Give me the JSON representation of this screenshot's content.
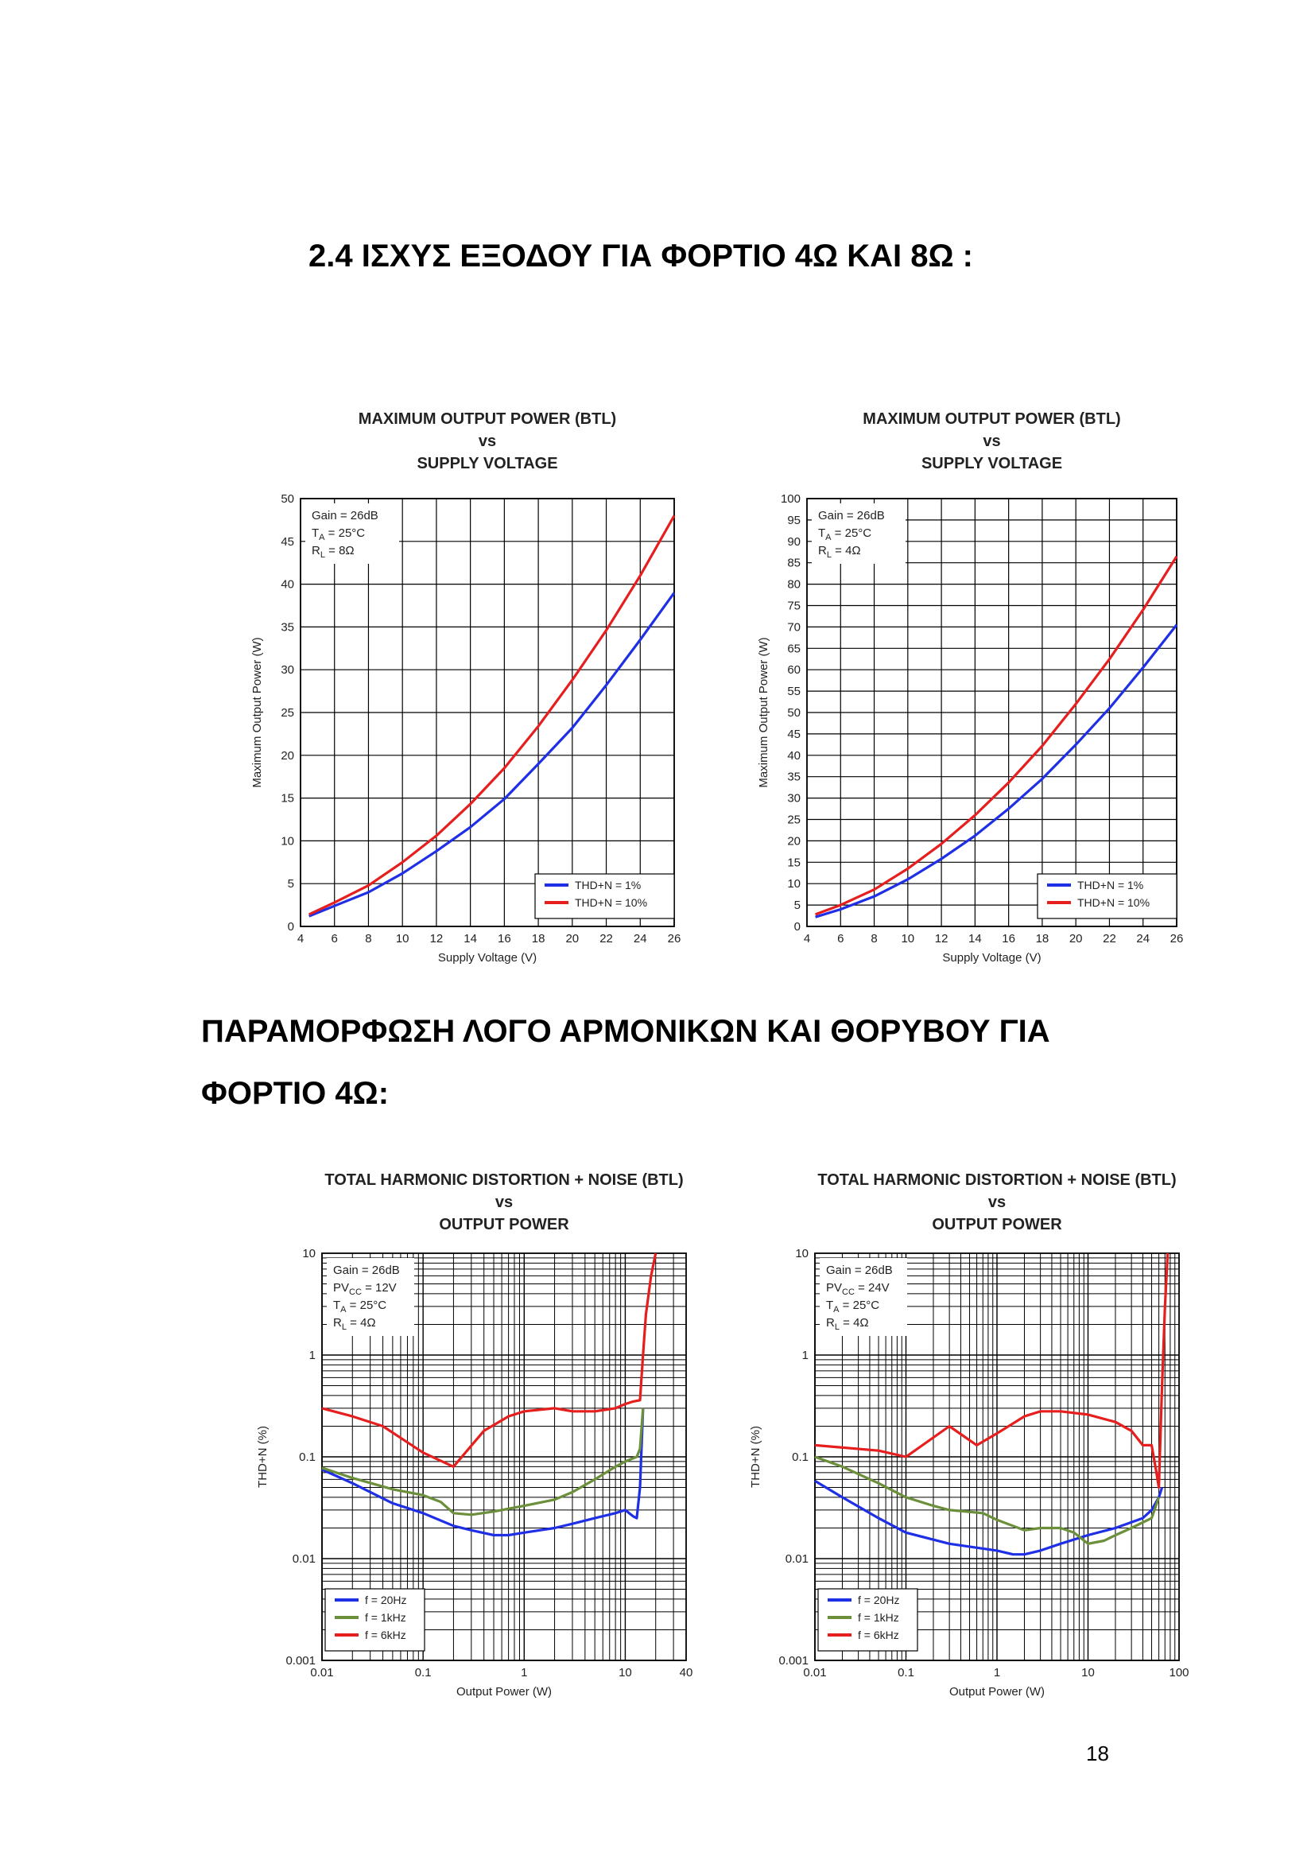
{
  "section_heading": "2.4   ΙΣΧΥΣ ΕΞΟΔΟΥ ΓΙΑ ΦΟΡΤΙΟ 4Ω ΚΑΙ 8Ω :",
  "subheading": "ΠΑΡΑΜΟΡΦΩΣΗ ΛΟΓΟ ΑΡΜΟΝΙΚΩΝ ΚΑΙ ΘΟΡΥΒΟΥ ΓΙΑ ΦΟΡΤΙΟ 4Ω:",
  "page_number": "18",
  "chart_data": [
    {
      "type": "line",
      "title_lines": [
        "MAXIMUM OUTPUT POWER (BTL)",
        "vs",
        "SUPPLY VOLTAGE"
      ],
      "xlabel": "Supply Voltage (V)",
      "ylabel": "Maximum Output Power (W)",
      "xlim": [
        4,
        26
      ],
      "ylim": [
        0,
        50
      ],
      "xticks": [
        4,
        6,
        8,
        10,
        12,
        14,
        16,
        18,
        20,
        22,
        24,
        26
      ],
      "yticks": [
        0,
        5,
        10,
        15,
        20,
        25,
        30,
        35,
        40,
        45,
        50
      ],
      "grid": true,
      "annotation": [
        "Gain = 26dB",
        "T_A = 25°C",
        "R_L = 8Ω"
      ],
      "legend_position": "bottom-right",
      "series": [
        {
          "name": "THD+N = 1%",
          "color": "#1f2fe6",
          "x": [
            4.5,
            6,
            8,
            10,
            12,
            14,
            16,
            18,
            20,
            22,
            24,
            26
          ],
          "y": [
            1.2,
            2.4,
            4,
            6.2,
            8.8,
            11.6,
            14.9,
            19.0,
            23.2,
            28.2,
            33.5,
            39
          ]
        },
        {
          "name": "THD+N = 10%",
          "color": "#e61e1e",
          "x": [
            4.5,
            6,
            8,
            10,
            12,
            14,
            16,
            18,
            20,
            22,
            24,
            26
          ],
          "y": [
            1.4,
            2.8,
            4.8,
            7.5,
            10.6,
            14.3,
            18.5,
            23.4,
            28.8,
            34.6,
            41,
            48
          ]
        }
      ]
    },
    {
      "type": "line",
      "title_lines": [
        "MAXIMUM OUTPUT POWER (BTL)",
        "vs",
        "SUPPLY VOLTAGE"
      ],
      "xlabel": "Supply Voltage (V)",
      "ylabel": "Maximum Output Power (W)",
      "xlim": [
        4,
        26
      ],
      "ylim": [
        0,
        100
      ],
      "xticks": [
        4,
        6,
        8,
        10,
        12,
        14,
        16,
        18,
        20,
        22,
        24,
        26
      ],
      "yticks": [
        0,
        5,
        10,
        15,
        20,
        25,
        30,
        35,
        40,
        45,
        50,
        55,
        60,
        65,
        70,
        75,
        80,
        85,
        90,
        95,
        100
      ],
      "grid": true,
      "annotation": [
        "Gain = 26dB",
        "T_A = 25°C",
        "R_L = 4Ω"
      ],
      "legend_position": "bottom-right",
      "series": [
        {
          "name": "THD+N = 1%",
          "color": "#1f2fe6",
          "x": [
            4.5,
            6,
            8,
            10,
            12,
            14,
            16,
            18,
            20,
            22,
            24,
            26
          ],
          "y": [
            2.2,
            4.0,
            7.0,
            11.0,
            15.8,
            21.2,
            27.5,
            34.5,
            42.5,
            51,
            60.5,
            70.5
          ]
        },
        {
          "name": "THD+N = 10%",
          "color": "#e61e1e",
          "x": [
            4.5,
            6,
            8,
            10,
            12,
            14,
            16,
            18,
            20,
            22,
            24,
            26
          ],
          "y": [
            2.8,
            5.0,
            8.6,
            13.5,
            19.3,
            26,
            33.6,
            42.2,
            52,
            62.5,
            74,
            86.5
          ]
        }
      ]
    },
    {
      "type": "line",
      "title_lines": [
        "TOTAL HARMONIC DISTORTION + NOISE (BTL)",
        "vs",
        "OUTPUT POWER"
      ],
      "xlabel": "Output Power (W)",
      "ylabel": "THD+N (%)",
      "xscale": "log",
      "yscale": "log",
      "xlim": [
        0.01,
        40
      ],
      "ylim": [
        0.001,
        10
      ],
      "xticks": [
        0.01,
        0.1,
        1,
        10,
        40
      ],
      "xticklabels": [
        "0.01",
        "0.1",
        "1",
        "10",
        "40"
      ],
      "yticks": [
        0.001,
        0.01,
        0.1,
        1,
        10
      ],
      "yticklabels": [
        "0.001",
        "0.01",
        "0.1",
        "1",
        "10"
      ],
      "grid": true,
      "annotation": [
        "Gain = 26dB",
        "PV_CC = 12V",
        "T_A = 25°C",
        "R_L = 4Ω"
      ],
      "legend_position": "bottom-left",
      "series": [
        {
          "name": "f = 20Hz",
          "color": "#1f2fe6",
          "x": [
            0.01,
            0.02,
            0.05,
            0.1,
            0.2,
            0.3,
            0.5,
            0.7,
            1,
            2,
            3,
            5,
            8,
            10,
            12,
            13,
            14,
            15
          ],
          "y": [
            0.075,
            0.055,
            0.035,
            0.028,
            0.021,
            0.019,
            0.017,
            0.017,
            0.018,
            0.02,
            0.022,
            0.025,
            0.028,
            0.03,
            0.026,
            0.025,
            0.05,
            0.3
          ]
        },
        {
          "name": "f = 1kHz",
          "color": "#6b8f3a",
          "x": [
            0.01,
            0.02,
            0.05,
            0.1,
            0.15,
            0.2,
            0.3,
            0.5,
            1,
            2,
            3,
            5,
            8,
            10,
            13,
            14,
            15
          ],
          "y": [
            0.078,
            0.062,
            0.048,
            0.042,
            0.036,
            0.028,
            0.027,
            0.029,
            0.033,
            0.038,
            0.045,
            0.06,
            0.08,
            0.09,
            0.1,
            0.12,
            0.3
          ]
        },
        {
          "name": "f = 6kHz",
          "color": "#e61e1e",
          "x": [
            0.01,
            0.02,
            0.04,
            0.1,
            0.2,
            0.4,
            0.7,
            1,
            2,
            3,
            5,
            8,
            10,
            12,
            14,
            15,
            16,
            18,
            20
          ],
          "y": [
            0.3,
            0.25,
            0.2,
            0.11,
            0.08,
            0.18,
            0.25,
            0.28,
            0.3,
            0.28,
            0.28,
            0.3,
            0.33,
            0.35,
            0.36,
            1,
            2.5,
            6,
            10
          ]
        }
      ]
    },
    {
      "type": "line",
      "title_lines": [
        "TOTAL HARMONIC DISTORTION + NOISE (BTL)",
        "vs",
        "OUTPUT POWER"
      ],
      "xlabel": "Output Power (W)",
      "ylabel": "THD+N (%)",
      "xscale": "log",
      "yscale": "log",
      "xlim": [
        0.01,
        100
      ],
      "ylim": [
        0.001,
        10
      ],
      "xticks": [
        0.01,
        0.1,
        1,
        10,
        100
      ],
      "xticklabels": [
        "0.01",
        "0.1",
        "1",
        "10",
        "100"
      ],
      "yticks": [
        0.001,
        0.01,
        0.1,
        1,
        10
      ],
      "yticklabels": [
        "0.001",
        "0.01",
        "0.1",
        "1",
        "10"
      ],
      "grid": true,
      "annotation": [
        "Gain = 26dB",
        "PV_CC = 24V",
        "T_A = 25°C",
        "R_L = 4Ω"
      ],
      "legend_position": "bottom-left",
      "series": [
        {
          "name": "f = 20Hz",
          "color": "#1f2fe6",
          "x": [
            0.01,
            0.02,
            0.05,
            0.1,
            0.3,
            1,
            1.5,
            2,
            3,
            5,
            10,
            20,
            40,
            50,
            60,
            65
          ],
          "y": [
            0.058,
            0.04,
            0.025,
            0.018,
            0.014,
            0.012,
            0.011,
            0.011,
            0.012,
            0.014,
            0.017,
            0.02,
            0.025,
            0.03,
            0.04,
            0.05
          ]
        },
        {
          "name": "f = 1kHz",
          "color": "#6b8f3a",
          "x": [
            0.01,
            0.02,
            0.05,
            0.1,
            0.2,
            0.3,
            0.7,
            1,
            2,
            3,
            5,
            7,
            10,
            15,
            20,
            30,
            50,
            60
          ],
          "y": [
            0.1,
            0.08,
            0.055,
            0.04,
            0.033,
            0.03,
            0.028,
            0.024,
            0.019,
            0.02,
            0.02,
            0.018,
            0.014,
            0.015,
            0.017,
            0.02,
            0.025,
            0.04
          ]
        },
        {
          "name": "f = 6kHz",
          "color": "#e61e1e",
          "x": [
            0.01,
            0.05,
            0.1,
            0.3,
            0.6,
            1,
            2,
            3,
            5,
            10,
            20,
            30,
            40,
            50,
            55,
            60,
            65,
            70,
            75
          ],
          "y": [
            0.13,
            0.115,
            0.1,
            0.2,
            0.13,
            0.17,
            0.25,
            0.28,
            0.28,
            0.26,
            0.22,
            0.18,
            0.13,
            0.13,
            0.08,
            0.05,
            0.5,
            3,
            10
          ]
        }
      ]
    }
  ]
}
